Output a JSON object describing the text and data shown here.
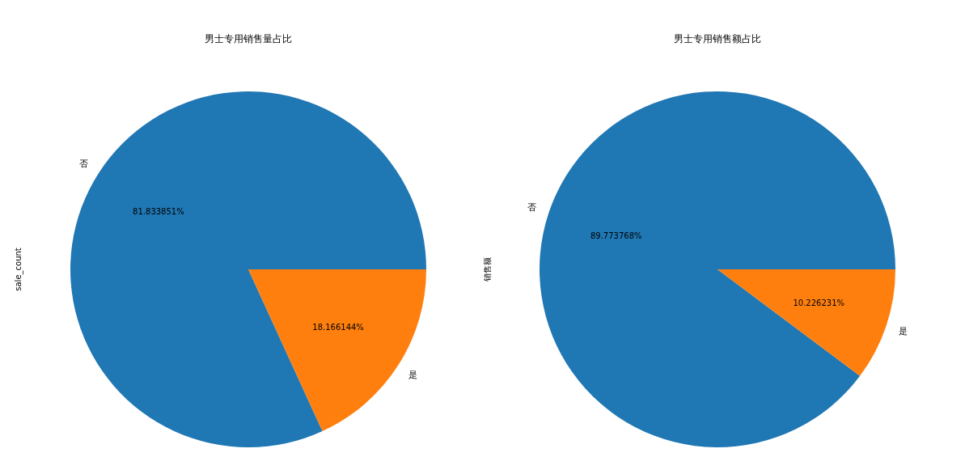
{
  "chart_data": [
    {
      "type": "pie",
      "title": "男士专用销售量占比",
      "ylabel": "sale_count",
      "categories": [
        "否",
        "是"
      ],
      "values": [
        81.833851,
        18.166144
      ],
      "colors": [
        "#1f77b4",
        "#ff7f0e"
      ],
      "value_labels": [
        "81.833851%",
        "18.166144%"
      ]
    },
    {
      "type": "pie",
      "title": "男士专用销售额占比",
      "ylabel": "销售额",
      "categories": [
        "否",
        "是"
      ],
      "values": [
        89.773768,
        10.226231
      ],
      "colors": [
        "#1f77b4",
        "#ff7f0e"
      ],
      "value_labels": [
        "89.773768%",
        "10.226231%"
      ]
    }
  ]
}
